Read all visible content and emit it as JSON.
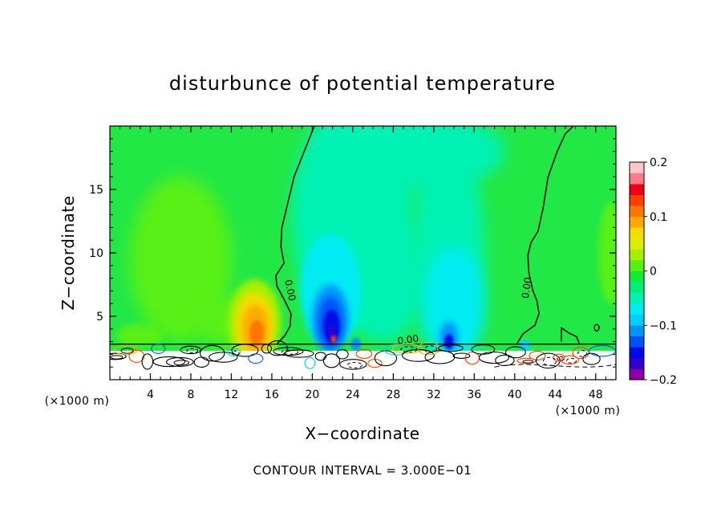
{
  "chart_data": {
    "type": "heatmap",
    "title": "disturbunce of potential temperature",
    "xlabel": "X−coordinate",
    "ylabel": "Z−coordinate",
    "x_unit_left": "(×1000 m)",
    "x_unit_right": "(×1000 m)",
    "xlim": [
      0,
      50
    ],
    "ylim": [
      0,
      20
    ],
    "xticks": [
      4,
      8,
      12,
      16,
      20,
      24,
      28,
      32,
      36,
      40,
      44,
      48
    ],
    "xtick_labels": [
      "4",
      "8",
      "12",
      "16",
      "20",
      "24",
      "28",
      "32",
      "36",
      "40",
      "44",
      "48"
    ],
    "yticks": [
      5,
      10,
      15
    ],
    "ytick_labels": [
      "5",
      "10",
      "15"
    ],
    "colorbar": {
      "min": -0.2,
      "max": 0.2,
      "step": 0.025,
      "colors": [
        "#8a00a8",
        "#3200cc",
        "#0008e8",
        "#0050f8",
        "#0094ff",
        "#00cfff",
        "#00ecf2",
        "#00f2b4",
        "#00ef7a",
        "#10ea3a",
        "#58f012",
        "#a4f000",
        "#d8f000",
        "#f4dc00",
        "#ffaa00",
        "#ff7600",
        "#ff3e00",
        "#f00016",
        "#ff7a88",
        "#ffc4cc"
      ],
      "tick_values": [
        0.2,
        0.1,
        0,
        -0.1,
        -0.2
      ],
      "tick_labels": [
        "0.2",
        "0.1",
        "0",
        "−0.1",
        "−0.2"
      ]
    },
    "fields": [
      {
        "name": "background",
        "value": 0.02
      },
      {
        "name": "warm-left-plume",
        "x": 7,
        "z": 10,
        "value": 0.055
      },
      {
        "name": "warm-right-edge",
        "x": 49.5,
        "z": 10,
        "value": 0.05
      },
      {
        "name": "warm-core",
        "x": 14.3,
        "z": 4,
        "value": 0.175
      },
      {
        "name": "warm-lowleft",
        "x": 3,
        "z": 3.6,
        "value": 0.07
      },
      {
        "name": "cool-mid-column",
        "x": 24,
        "z": 12,
        "value": -0.02
      },
      {
        "name": "cool-column-2",
        "x": 33,
        "z": 6,
        "value": -0.05
      },
      {
        "name": "cold-core",
        "x": 21.8,
        "z": 4.5,
        "value": -0.15
      },
      {
        "name": "cold-spot",
        "x": 33.5,
        "z": 2.9,
        "value": -0.14
      }
    ],
    "contour_zero_label": "0.00",
    "contour_labels": [
      "0.00",
      "0.00",
      "0.00"
    ],
    "contour_interval_label": "CONTOUR INTERVAL = 3.000E−01"
  }
}
